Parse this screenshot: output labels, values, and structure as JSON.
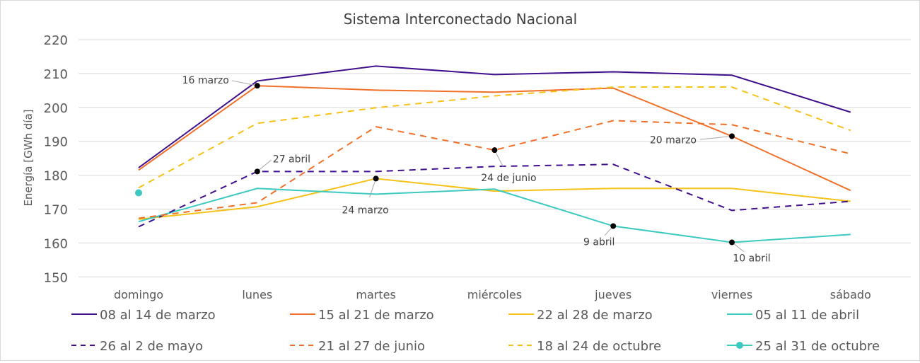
{
  "chart_data": {
    "type": "line",
    "title": "Sistema Interconectado Nacional",
    "ylabel": "Energía [GWh día]",
    "xlabel": "",
    "ylim": [
      150,
      220
    ],
    "yticks": [
      150,
      160,
      170,
      180,
      190,
      200,
      210,
      220
    ],
    "grid": true,
    "legend_position": "bottom",
    "categories": [
      "domingo",
      "lunes",
      "martes",
      "miércoles",
      "jueves",
      "viernes",
      "sábado"
    ],
    "series": [
      {
        "name": "08 al 14 de marzo",
        "color": "#3f0f8c",
        "dash": false,
        "values": [
          182.2,
          207.8,
          212.2,
          209.7,
          210.5,
          209.5,
          198.6
        ]
      },
      {
        "name": "15 al 21 de marzo",
        "color": "#f0702a",
        "dash": false,
        "values": [
          181.5,
          206.4,
          205.1,
          204.5,
          205.7,
          191.5,
          175.5
        ]
      },
      {
        "name": "22 al 28 de marzo",
        "color": "#f5c218",
        "dash": false,
        "values": [
          167.0,
          170.7,
          179.0,
          175.3,
          176.1,
          176.1,
          172.3
        ]
      },
      {
        "name": "05 al 11 de abril",
        "color": "#3cc9c0",
        "dash": false,
        "values": [
          166.3,
          176.1,
          174.4,
          175.9,
          165.0,
          160.2,
          162.5
        ]
      },
      {
        "name": "26 al 2 de mayo",
        "color": "#3f0f8c",
        "dash": true,
        "values": [
          164.8,
          181.1,
          181.1,
          182.6,
          183.2,
          169.6,
          172.3
        ]
      },
      {
        "name": "21 al 27 de junio",
        "color": "#f0702a",
        "dash": true,
        "values": [
          167.3,
          171.9,
          194.3,
          187.4,
          196.1,
          194.9,
          186.3
        ]
      },
      {
        "name": "18 al 24 de octubre",
        "color": "#f5c218",
        "dash": true,
        "values": [
          176.3,
          195.3,
          199.9,
          203.4,
          206.0,
          206.0,
          193.2
        ]
      },
      {
        "name": "25 al 31 de octubre",
        "color": "#3cc9c0",
        "dash": false,
        "marker": true,
        "values": [
          174.8,
          null,
          null,
          null,
          null,
          null,
          null
        ]
      }
    ],
    "annotations": [
      {
        "text": "16 marzo",
        "series": 1,
        "category": "lunes"
      },
      {
        "text": "27 abril",
        "series": 4,
        "category": "lunes"
      },
      {
        "text": "24 marzo",
        "series": 2,
        "category": "martes"
      },
      {
        "text": "24 de junio",
        "series": 5,
        "category": "miércoles"
      },
      {
        "text": "9 abril",
        "series": 3,
        "category": "jueves"
      },
      {
        "text": "20 marzo",
        "series": 1,
        "category": "viernes"
      },
      {
        "text": "10 abril",
        "series": 3,
        "category": "viernes"
      }
    ]
  }
}
